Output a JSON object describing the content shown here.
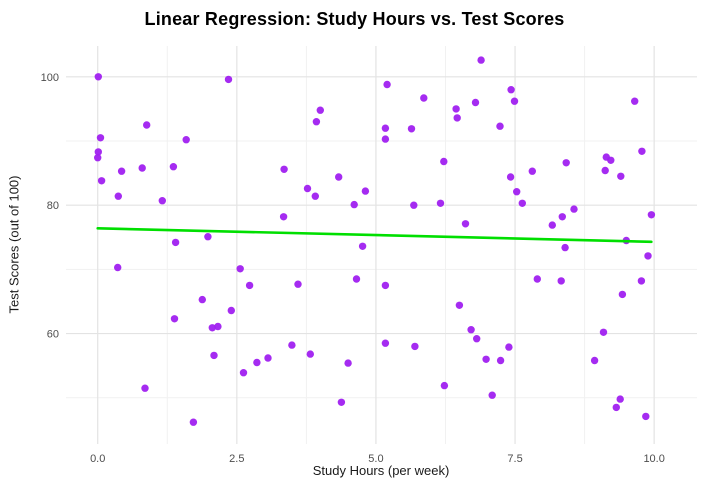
{
  "chart_data": {
    "type": "scatter",
    "title": "Linear Regression: Study Hours vs. Test Scores",
    "xlabel": "Study Hours (per week)",
    "ylabel": "Test Scores (out of 100)",
    "xlim": [
      -0.57,
      10.77
    ],
    "ylim": [
      42.8,
      104.8
    ],
    "x_ticks": [
      0.0,
      2.5,
      5.0,
      7.5,
      10.0
    ],
    "x_tick_labels": [
      "0.0",
      "2.5",
      "5.0",
      "7.5",
      "10.0"
    ],
    "x_minor_ticks": [
      1.25,
      3.75,
      6.25,
      8.75
    ],
    "y_ticks": [
      60,
      80,
      100
    ],
    "y_tick_labels": [
      "60",
      "80",
      "100"
    ],
    "y_minor_ticks": [
      50,
      70,
      90
    ],
    "grid": true,
    "legend": false,
    "colors": {
      "point": "#A020F0",
      "regression_line": "#00DF00",
      "grid_major": "#E3E3E3",
      "grid_minor": "#F1F1F1",
      "tick_label": "#4d4d4d",
      "background": "#ffffff"
    },
    "series": [
      {
        "name": "observations",
        "color": "#A020F0",
        "points": [
          [
            0.01,
            100.0
          ],
          [
            2.35,
            99.6
          ],
          [
            0.88,
            92.5
          ],
          [
            0.05,
            90.5
          ],
          [
            1.59,
            90.2
          ],
          [
            0.01,
            88.3
          ],
          [
            0.0,
            87.4
          ],
          [
            0.43,
            85.3
          ],
          [
            0.8,
            85.8
          ],
          [
            1.36,
            86.0
          ],
          [
            0.07,
            83.8
          ],
          [
            0.37,
            81.4
          ],
          [
            1.16,
            80.7
          ],
          [
            1.4,
            74.2
          ],
          [
            1.98,
            75.1
          ],
          [
            0.36,
            70.3
          ],
          [
            1.88,
            65.3
          ],
          [
            1.38,
            62.3
          ],
          [
            2.06,
            60.9
          ],
          [
            2.16,
            61.1
          ],
          [
            2.09,
            56.6
          ],
          [
            0.85,
            51.5
          ],
          [
            1.72,
            46.2
          ],
          [
            4.0,
            94.8
          ],
          [
            3.93,
            93.0
          ],
          [
            3.35,
            85.6
          ],
          [
            4.33,
            84.4
          ],
          [
            3.77,
            82.6
          ],
          [
            3.91,
            81.4
          ],
          [
            4.81,
            82.2
          ],
          [
            4.61,
            80.1
          ],
          [
            3.34,
            78.2
          ],
          [
            4.76,
            73.6
          ],
          [
            2.56,
            70.1
          ],
          [
            2.73,
            67.5
          ],
          [
            3.6,
            67.7
          ],
          [
            4.65,
            68.5
          ],
          [
            2.4,
            63.6
          ],
          [
            3.49,
            58.2
          ],
          [
            3.82,
            56.8
          ],
          [
            2.86,
            55.5
          ],
          [
            3.06,
            56.2
          ],
          [
            2.62,
            53.9
          ],
          [
            4.5,
            55.4
          ],
          [
            4.38,
            49.3
          ],
          [
            6.89,
            102.6
          ],
          [
            5.2,
            98.8
          ],
          [
            5.86,
            96.7
          ],
          [
            7.43,
            98.0
          ],
          [
            7.49,
            96.2
          ],
          [
            6.79,
            96.0
          ],
          [
            6.44,
            95.0
          ],
          [
            6.46,
            93.6
          ],
          [
            7.23,
            92.3
          ],
          [
            5.17,
            92.0
          ],
          [
            5.64,
            91.9
          ],
          [
            5.17,
            90.3
          ],
          [
            6.22,
            86.8
          ],
          [
            7.42,
            84.4
          ],
          [
            7.81,
            85.3
          ],
          [
            7.53,
            82.1
          ],
          [
            7.63,
            80.3
          ],
          [
            5.68,
            80.0
          ],
          [
            6.16,
            80.3
          ],
          [
            6.61,
            77.1
          ],
          [
            7.9,
            68.5
          ],
          [
            6.5,
            64.4
          ],
          [
            6.71,
            60.6
          ],
          [
            6.81,
            59.2
          ],
          [
            5.7,
            58.0
          ],
          [
            7.39,
            57.9
          ],
          [
            6.98,
            56.0
          ],
          [
            7.24,
            55.8
          ],
          [
            6.23,
            51.9
          ],
          [
            7.09,
            50.4
          ],
          [
            5.17,
            67.5
          ],
          [
            5.17,
            58.5
          ],
          [
            9.65,
            96.2
          ],
          [
            9.78,
            88.4
          ],
          [
            8.42,
            86.6
          ],
          [
            9.14,
            87.5
          ],
          [
            9.22,
            87.0
          ],
          [
            9.12,
            85.4
          ],
          [
            9.4,
            84.5
          ],
          [
            8.56,
            79.4
          ],
          [
            8.35,
            78.2
          ],
          [
            8.17,
            76.9
          ],
          [
            9.95,
            78.5
          ],
          [
            9.5,
            74.5
          ],
          [
            8.4,
            73.4
          ],
          [
            9.89,
            72.1
          ],
          [
            8.33,
            68.2
          ],
          [
            9.77,
            68.2
          ],
          [
            9.43,
            66.1
          ],
          [
            9.09,
            60.2
          ],
          [
            8.93,
            55.8
          ],
          [
            9.39,
            49.8
          ],
          [
            9.32,
            48.5
          ],
          [
            9.85,
            47.1
          ]
        ]
      }
    ],
    "regression_line": {
      "x1": 0.0,
      "y1": 76.4,
      "x2": 9.95,
      "y2": 74.3
    }
  }
}
